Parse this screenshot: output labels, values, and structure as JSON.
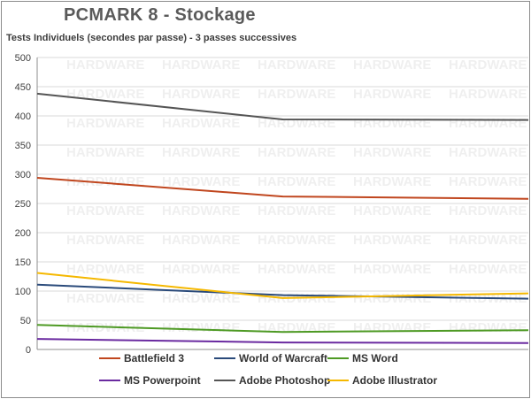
{
  "chart_data": {
    "type": "line",
    "title": "PCMARK 8 - Stockage",
    "subtitle": "Tests Individuels (secondes par passe) - 3 passes successives",
    "xlabel": "",
    "ylabel": "",
    "ylim": [
      0,
      500
    ],
    "yticks": [
      "0",
      "50",
      "100",
      "150",
      "200",
      "250",
      "300",
      "350",
      "400",
      "450",
      "500"
    ],
    "x": [
      1,
      2,
      3
    ],
    "grid": true,
    "legend_position": "bottom",
    "watermark": "HARDWARE",
    "series": [
      {
        "name": "Battlefield 3",
        "color": "#c0461e",
        "values": [
          294,
          262,
          258
        ]
      },
      {
        "name": "World of Warcraft",
        "color": "#2a4a7a",
        "values": [
          111,
          93,
          87
        ]
      },
      {
        "name": "MS Word",
        "color": "#4e9a24",
        "values": [
          42,
          30,
          33
        ]
      },
      {
        "name": "MS Powerpoint",
        "color": "#6a2aa0",
        "values": [
          18,
          12,
          11
        ]
      },
      {
        "name": "Adobe Photoshop",
        "color": "#555555",
        "values": [
          438,
          394,
          393
        ]
      },
      {
        "name": "Adobe Illustrator",
        "color": "#f5b800",
        "values": [
          131,
          88,
          96
        ]
      }
    ]
  }
}
